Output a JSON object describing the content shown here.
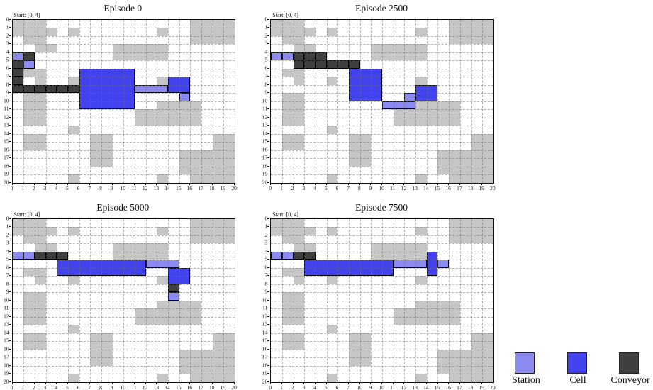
{
  "chart_data": {
    "type": "heatmap",
    "title": "",
    "x_range": [
      0,
      20
    ],
    "y_range": [
      0,
      20
    ],
    "grid": {
      "cols": 20,
      "rows": 20,
      "grid_on": true
    },
    "x_tick_labels": [
      "0",
      "1",
      "2",
      "3",
      "4",
      "5",
      "6",
      "7",
      "8",
      "9",
      "10",
      "11",
      "12",
      "13",
      "14",
      "15",
      "16",
      "17",
      "18",
      "19",
      "20"
    ],
    "y_tick_labels": [
      "0",
      "1",
      "2",
      "3",
      "4",
      "5",
      "6",
      "7",
      "8",
      "9",
      "10",
      "11",
      "12",
      "13",
      "14",
      "15",
      "16",
      "17",
      "18",
      "19",
      "20"
    ],
    "colors": {
      "station": "#8a8af0",
      "cell": "#4242ee",
      "conveyor": "#3f3f3f",
      "obstacle": "#c6c6c6",
      "cell_border": "#000000"
    },
    "obstacles": [
      [
        0,
        0
      ],
      [
        1,
        0
      ],
      [
        2,
        0
      ],
      [
        16,
        0
      ],
      [
        17,
        0
      ],
      [
        18,
        0
      ],
      [
        19,
        0
      ],
      [
        0,
        1
      ],
      [
        1,
        1
      ],
      [
        2,
        1
      ],
      [
        3,
        1
      ],
      [
        5,
        1
      ],
      [
        13,
        1
      ],
      [
        16,
        1
      ],
      [
        17,
        1
      ],
      [
        18,
        1
      ],
      [
        19,
        1
      ],
      [
        1,
        2
      ],
      [
        2,
        2
      ],
      [
        16,
        2
      ],
      [
        17,
        2
      ],
      [
        18,
        2
      ],
      [
        19,
        2
      ],
      [
        2,
        3
      ],
      [
        3,
        3
      ],
      [
        9,
        3
      ],
      [
        10,
        3
      ],
      [
        11,
        3
      ],
      [
        12,
        3
      ],
      [
        13,
        3
      ],
      [
        9,
        4
      ],
      [
        10,
        4
      ],
      [
        11,
        4
      ],
      [
        12,
        4
      ],
      [
        13,
        4
      ],
      [
        1,
        6
      ],
      [
        2,
        6
      ],
      [
        2,
        7
      ],
      [
        5,
        7
      ],
      [
        13,
        7
      ],
      [
        1,
        9
      ],
      [
        2,
        9
      ],
      [
        1,
        10
      ],
      [
        2,
        10
      ],
      [
        13,
        10
      ],
      [
        14,
        10
      ],
      [
        15,
        10
      ],
      [
        16,
        10
      ],
      [
        1,
        11
      ],
      [
        2,
        11
      ],
      [
        11,
        11
      ],
      [
        12,
        11
      ],
      [
        13,
        11
      ],
      [
        14,
        11
      ],
      [
        15,
        11
      ],
      [
        16,
        11
      ],
      [
        1,
        12
      ],
      [
        2,
        12
      ],
      [
        11,
        12
      ],
      [
        12,
        12
      ],
      [
        13,
        12
      ],
      [
        14,
        12
      ],
      [
        15,
        12
      ],
      [
        16,
        12
      ],
      [
        5,
        13
      ],
      [
        1,
        14
      ],
      [
        2,
        14
      ],
      [
        7,
        14
      ],
      [
        8,
        14
      ],
      [
        18,
        14
      ],
      [
        19,
        14
      ],
      [
        1,
        15
      ],
      [
        2,
        15
      ],
      [
        7,
        15
      ],
      [
        8,
        15
      ],
      [
        18,
        15
      ],
      [
        19,
        15
      ],
      [
        7,
        16
      ],
      [
        8,
        16
      ],
      [
        15,
        16
      ],
      [
        16,
        16
      ],
      [
        17,
        16
      ],
      [
        18,
        16
      ],
      [
        19,
        16
      ],
      [
        7,
        17
      ],
      [
        8,
        17
      ],
      [
        15,
        17
      ],
      [
        16,
        17
      ],
      [
        17,
        17
      ],
      [
        18,
        17
      ],
      [
        19,
        17
      ],
      [
        15,
        18
      ],
      [
        16,
        18
      ],
      [
        17,
        18
      ],
      [
        18,
        18
      ],
      [
        19,
        18
      ],
      [
        5,
        19
      ],
      [
        13,
        19
      ],
      [
        16,
        19
      ],
      [
        17,
        19
      ],
      [
        18,
        19
      ],
      [
        19,
        19
      ]
    ],
    "subplots": [
      {
        "title": "Episode 0",
        "start_label": "Start: [0, 4]",
        "stations": [
          [
            0,
            4,
            1,
            1
          ],
          [
            1,
            5,
            1,
            1
          ],
          [
            11,
            8,
            3,
            1
          ],
          [
            15,
            9,
            1,
            1
          ]
        ],
        "cells": [
          [
            6,
            6,
            5,
            5
          ],
          [
            14,
            7,
            2,
            2
          ]
        ],
        "conveyors": [
          [
            1,
            4
          ],
          [
            0,
            5
          ],
          [
            0,
            6
          ],
          [
            0,
            7
          ],
          [
            0,
            8
          ],
          [
            1,
            8
          ],
          [
            2,
            8
          ],
          [
            3,
            8
          ],
          [
            4,
            8
          ],
          [
            5,
            8
          ]
        ]
      },
      {
        "title": "Episode 2500",
        "start_label": "Start: [0, 4]",
        "stations": [
          [
            0,
            4,
            1,
            1
          ],
          [
            1,
            4,
            1,
            1
          ],
          [
            12,
            9,
            1,
            1
          ],
          [
            10,
            10,
            3,
            1
          ]
        ],
        "cells": [
          [
            7,
            6,
            3,
            4
          ],
          [
            13,
            8,
            2,
            2
          ]
        ],
        "conveyors": [
          [
            2,
            4
          ],
          [
            3,
            4
          ],
          [
            4,
            4
          ],
          [
            2,
            5
          ],
          [
            3,
            5
          ],
          [
            4,
            5
          ],
          [
            5,
            5
          ],
          [
            6,
            5
          ],
          [
            7,
            5
          ]
        ]
      },
      {
        "title": "Episode 5000",
        "start_label": "Start: [0, 4]",
        "stations": [
          [
            0,
            4,
            1,
            1
          ],
          [
            1,
            4,
            1,
            1
          ],
          [
            12,
            5,
            3,
            1
          ],
          [
            14,
            9,
            1,
            1
          ]
        ],
        "cells": [
          [
            4,
            5,
            8,
            2
          ],
          [
            14,
            6,
            2,
            2
          ]
        ],
        "conveyors": [
          [
            2,
            4
          ],
          [
            3,
            4
          ],
          [
            4,
            4
          ],
          [
            14,
            8
          ]
        ]
      },
      {
        "title": "Episode 7500",
        "start_label": "Start: [0, 4]",
        "stations": [
          [
            0,
            4,
            1,
            1
          ],
          [
            1,
            4,
            1,
            1
          ],
          [
            11,
            5,
            3,
            1
          ],
          [
            15,
            5,
            1,
            1
          ]
        ],
        "cells": [
          [
            3,
            5,
            8,
            2
          ],
          [
            14,
            4,
            1,
            3
          ]
        ],
        "conveyors": [
          [
            2,
            4
          ],
          [
            3,
            4
          ]
        ]
      }
    ],
    "legend_position": "bottom-right"
  },
  "legend": {
    "items": [
      {
        "label": "Station",
        "color": "#8a8af0"
      },
      {
        "label": "Cell",
        "color": "#4242ee"
      },
      {
        "label": "Conveyor",
        "color": "#3f3f3f"
      }
    ]
  }
}
